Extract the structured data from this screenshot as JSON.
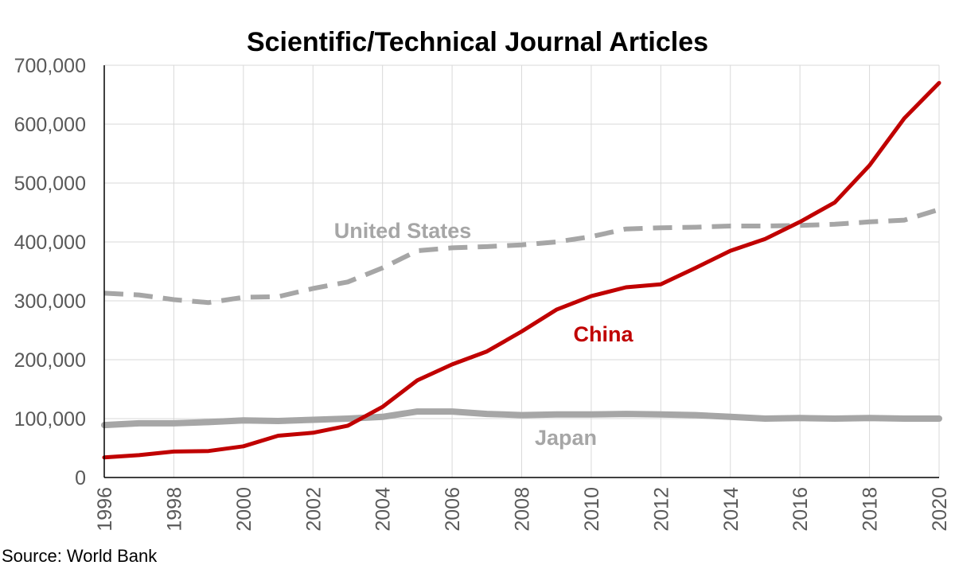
{
  "chart_data": {
    "type": "line",
    "title": "Scientific/Technical Journal Articles",
    "source": "Source: World Bank",
    "x": [
      1996,
      1997,
      1998,
      1999,
      2000,
      2001,
      2002,
      2003,
      2004,
      2005,
      2006,
      2007,
      2008,
      2009,
      2010,
      2011,
      2012,
      2013,
      2014,
      2015,
      2016,
      2017,
      2018,
      2019,
      2020
    ],
    "xticks": [
      "1996",
      "1998",
      "2000",
      "2002",
      "2004",
      "2006",
      "2008",
      "2010",
      "2012",
      "2014",
      "2016",
      "2018",
      "2020"
    ],
    "yticks": [
      "0",
      "100,000",
      "200,000",
      "300,000",
      "400,000",
      "500,000",
      "600,000",
      "700,000"
    ],
    "xlim": [
      1996,
      2020
    ],
    "ylim": [
      0,
      700000
    ],
    "grid": true,
    "legend": "none",
    "series": [
      {
        "name": "China",
        "color": "#C00000",
        "style": "solid",
        "values": [
          34000,
          38000,
          44000,
          45000,
          53000,
          71000,
          76000,
          88000,
          120000,
          165000,
          192000,
          214000,
          248000,
          285000,
          308000,
          323000,
          328000,
          356000,
          385000,
          405000,
          434000,
          467000,
          530000,
          610000,
          670000
        ]
      },
      {
        "name": "United States",
        "color": "#A6A6A6",
        "style": "dashed",
        "values": [
          313000,
          310000,
          302000,
          297000,
          306000,
          307000,
          321000,
          332000,
          356000,
          385000,
          390000,
          392000,
          395000,
          400000,
          409000,
          422000,
          424000,
          425000,
          427000,
          427000,
          428000,
          430000,
          434000,
          437000,
          455000
        ]
      },
      {
        "name": "Japan",
        "color": "#A6A6A6",
        "style": "solid",
        "values": [
          89000,
          92000,
          92000,
          94000,
          97000,
          96000,
          98000,
          100000,
          103000,
          112000,
          112000,
          108000,
          106000,
          107000,
          107000,
          108000,
          107000,
          106000,
          103000,
          100000,
          101000,
          100000,
          101000,
          100000,
          100000
        ]
      }
    ]
  }
}
